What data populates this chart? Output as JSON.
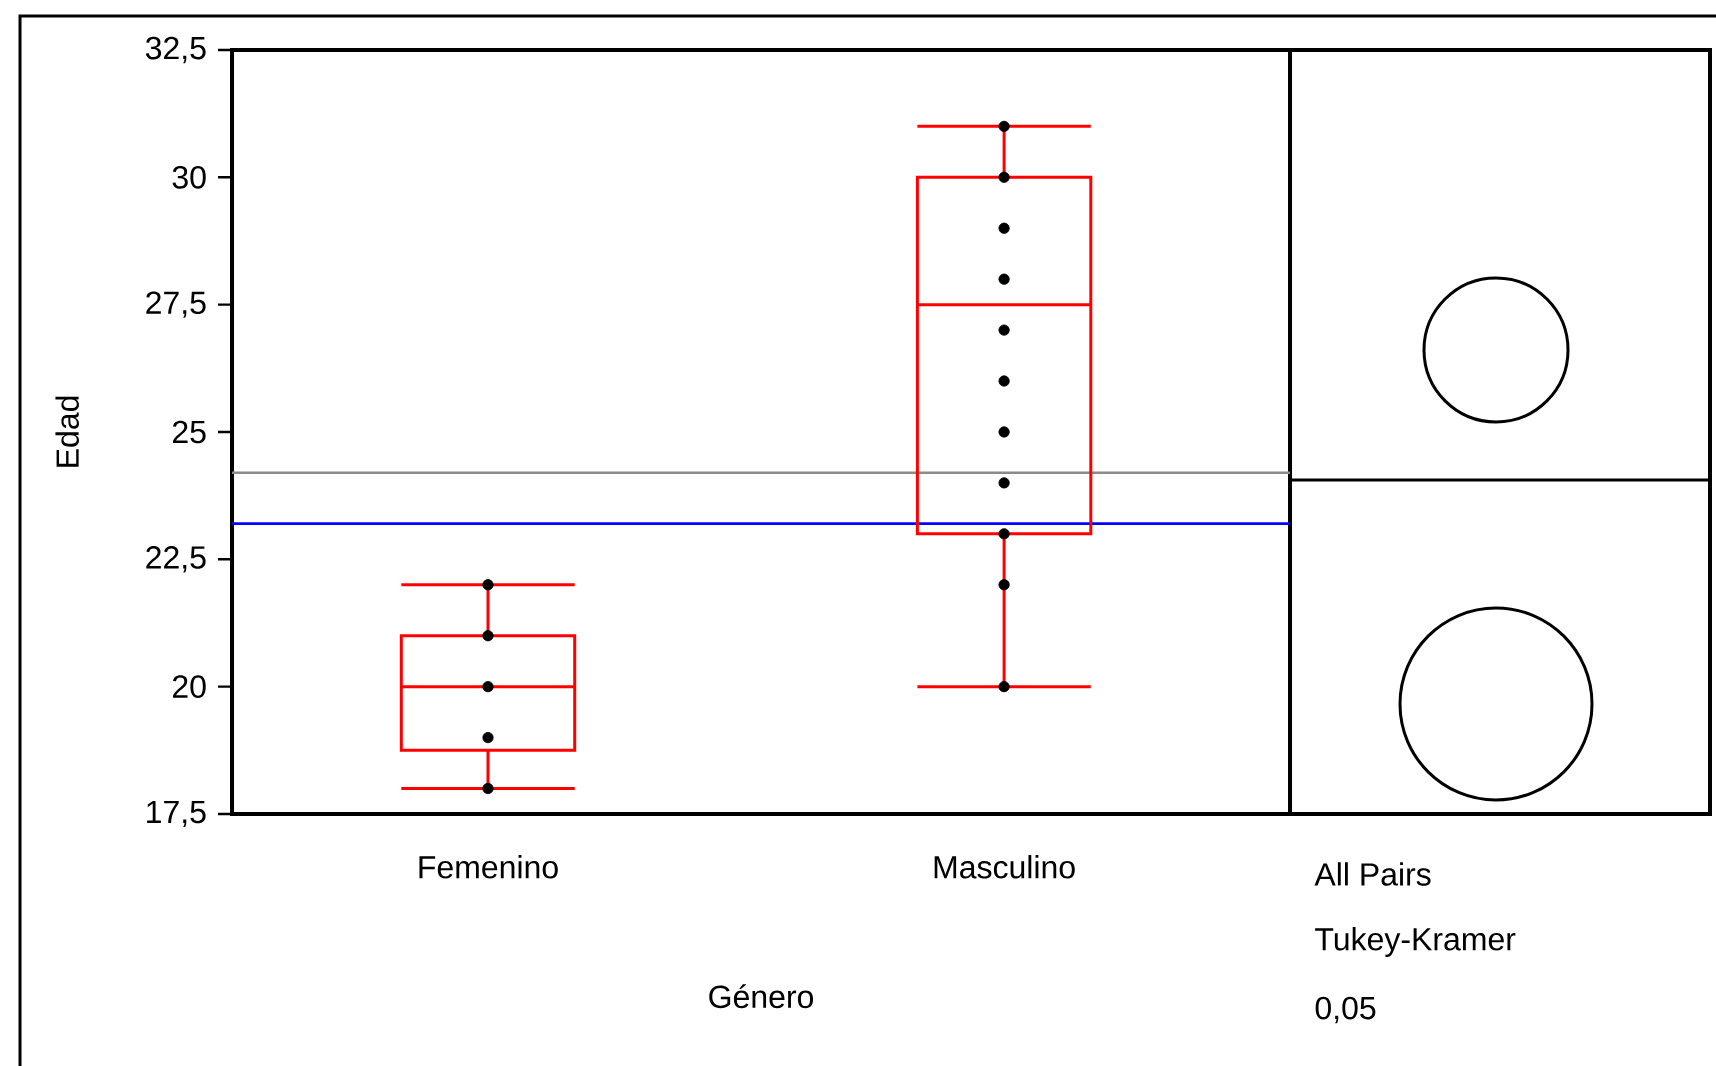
{
  "chart_data": {
    "type": "box",
    "xlabel": "Género",
    "ylabel": "Edad",
    "categories": [
      "Femenino",
      "Masculino"
    ],
    "ylim": [
      17.5,
      32.5
    ],
    "yticks": [
      {
        "value": 17.5,
        "label": "17,5"
      },
      20,
      {
        "value": 22.5,
        "label": "22,5"
      },
      25,
      {
        "value": 27.5,
        "label": "27,5"
      },
      30,
      {
        "value": 32.5,
        "label": "32,5"
      }
    ],
    "series": [
      {
        "type": "box",
        "color": "#ff0000",
        "boxes": [
          {
            "low": 18,
            "q1": 18.75,
            "median": 20,
            "q3": 21,
            "high": 22
          },
          {
            "low": 20,
            "q1": 23,
            "median": 27.5,
            "q3": 30,
            "high": 31
          }
        ]
      },
      {
        "type": "scatter",
        "color": "#000000",
        "x": [
          "Femenino",
          "Femenino",
          "Femenino",
          "Femenino",
          "Femenino",
          "Masculino",
          "Masculino",
          "Masculino",
          "Masculino",
          "Masculino",
          "Masculino",
          "Masculino",
          "Masculino",
          "Masculino",
          "Masculino",
          "Masculino"
        ],
        "values": [
          18,
          19,
          20,
          21,
          22,
          20,
          22,
          23,
          24,
          25,
          26,
          27,
          28,
          29,
          30,
          31
        ]
      }
    ],
    "ref_lines": [
      {
        "axis": "y",
        "value": 24.2,
        "color": "#8c8c84"
      },
      {
        "axis": "y",
        "value": 23.2,
        "color": "#0000ff"
      }
    ],
    "annotations": [
      "All Pairs",
      "Tukey-Kramer",
      "0,05"
    ]
  }
}
